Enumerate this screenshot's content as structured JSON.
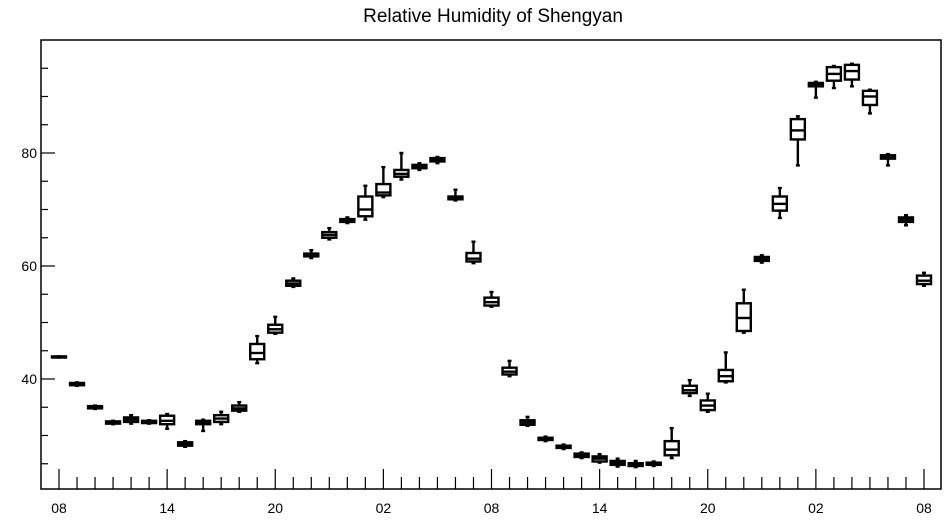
{
  "chart_data": {
    "type": "boxplot",
    "title": "Relative Humidity of Shengyan",
    "xlabel": "",
    "ylabel": "",
    "ylim": [
      22.5,
      98
    ],
    "y_ticks": [
      40,
      60,
      80
    ],
    "x_tick_labels": [
      "08",
      "14",
      "20",
      "02",
      "08",
      "14",
      "20",
      "02",
      "08"
    ],
    "grid": false,
    "box_color": "#000000",
    "boxes": [
      {
        "x": 0,
        "q1": 43.8,
        "median": 43.9,
        "q3": 44.0,
        "min": 43.8,
        "max": 44.0
      },
      {
        "x": 1,
        "q1": 38.9,
        "median": 39.1,
        "q3": 39.3,
        "min": 38.8,
        "max": 39.4
      },
      {
        "x": 2,
        "q1": 34.8,
        "median": 35.0,
        "q3": 35.2,
        "min": 34.7,
        "max": 35.3
      },
      {
        "x": 3,
        "q1": 32.1,
        "median": 32.3,
        "q3": 32.5,
        "min": 32.0,
        "max": 32.6
      },
      {
        "x": 4,
        "q1": 32.4,
        "median": 32.8,
        "q3": 33.2,
        "min": 32.1,
        "max": 33.6
      },
      {
        "x": 5,
        "q1": 32.2,
        "median": 32.4,
        "q3": 32.6,
        "min": 32.1,
        "max": 32.7
      },
      {
        "x": 6,
        "q1": 32.0,
        "median": 32.6,
        "q3": 33.5,
        "min": 31.2,
        "max": 33.8
      },
      {
        "x": 7,
        "q1": 28.2,
        "median": 28.5,
        "q3": 28.8,
        "min": 28.0,
        "max": 29.0
      },
      {
        "x": 8,
        "q1": 32.0,
        "median": 32.3,
        "q3": 32.6,
        "min": 30.8,
        "max": 32.8
      },
      {
        "x": 9,
        "q1": 32.4,
        "median": 33.0,
        "q3": 33.6,
        "min": 32.0,
        "max": 34.2
      },
      {
        "x": 10,
        "q1": 34.4,
        "median": 34.8,
        "q3": 35.3,
        "min": 34.2,
        "max": 35.9
      },
      {
        "x": 11,
        "q1": 43.5,
        "median": 44.6,
        "q3": 46.2,
        "min": 42.8,
        "max": 47.6
      },
      {
        "x": 12,
        "q1": 48.2,
        "median": 48.8,
        "q3": 49.6,
        "min": 48.0,
        "max": 51.0
      },
      {
        "x": 13,
        "q1": 56.5,
        "median": 56.9,
        "q3": 57.4,
        "min": 56.3,
        "max": 57.8
      },
      {
        "x": 14,
        "q1": 61.7,
        "median": 61.9,
        "q3": 62.2,
        "min": 61.4,
        "max": 62.8
      },
      {
        "x": 15,
        "q1": 65.0,
        "median": 65.5,
        "q3": 66.0,
        "min": 64.7,
        "max": 66.7
      },
      {
        "x": 16,
        "q1": 67.8,
        "median": 68.0,
        "q3": 68.3,
        "min": 67.6,
        "max": 68.6
      },
      {
        "x": 17,
        "q1": 68.8,
        "median": 70.0,
        "q3": 72.3,
        "min": 68.2,
        "max": 74.2
      },
      {
        "x": 18,
        "q1": 72.5,
        "median": 73.0,
        "q3": 74.5,
        "min": 72.2,
        "max": 77.5
      },
      {
        "x": 19,
        "q1": 75.8,
        "median": 76.3,
        "q3": 77.0,
        "min": 75.3,
        "max": 80.0
      },
      {
        "x": 20,
        "q1": 77.3,
        "median": 77.6,
        "q3": 77.9,
        "min": 77.0,
        "max": 78.2
      },
      {
        "x": 21,
        "q1": 78.5,
        "median": 78.8,
        "q3": 79.1,
        "min": 78.2,
        "max": 79.3
      },
      {
        "x": 22,
        "q1": 71.8,
        "median": 72.0,
        "q3": 72.3,
        "min": 71.6,
        "max": 73.5
      },
      {
        "x": 23,
        "q1": 60.8,
        "median": 61.3,
        "q3": 62.3,
        "min": 60.5,
        "max": 64.3
      },
      {
        "x": 24,
        "q1": 53.0,
        "median": 53.6,
        "q3": 54.4,
        "min": 52.8,
        "max": 55.4
      },
      {
        "x": 25,
        "q1": 40.8,
        "median": 41.3,
        "q3": 42.0,
        "min": 40.5,
        "max": 43.2
      },
      {
        "x": 26,
        "q1": 31.9,
        "median": 32.3,
        "q3": 32.7,
        "min": 31.7,
        "max": 33.3
      },
      {
        "x": 27,
        "q1": 29.2,
        "median": 29.4,
        "q3": 29.6,
        "min": 29.0,
        "max": 29.8
      },
      {
        "x": 28,
        "q1": 27.8,
        "median": 28.0,
        "q3": 28.2,
        "min": 27.6,
        "max": 28.4
      },
      {
        "x": 29,
        "q1": 26.2,
        "median": 26.5,
        "q3": 26.8,
        "min": 26.0,
        "max": 27.0
      },
      {
        "x": 30,
        "q1": 25.4,
        "median": 25.9,
        "q3": 26.3,
        "min": 25.2,
        "max": 26.7
      },
      {
        "x": 31,
        "q1": 24.8,
        "median": 25.1,
        "q3": 25.5,
        "min": 24.5,
        "max": 25.9
      },
      {
        "x": 32,
        "q1": 24.6,
        "median": 24.9,
        "q3": 25.1,
        "min": 24.4,
        "max": 25.5
      },
      {
        "x": 33,
        "q1": 24.8,
        "median": 25.0,
        "q3": 25.2,
        "min": 24.6,
        "max": 25.4
      },
      {
        "x": 34,
        "q1": 26.5,
        "median": 27.5,
        "q3": 29.0,
        "min": 26.0,
        "max": 31.3
      },
      {
        "x": 35,
        "q1": 37.5,
        "median": 38.0,
        "q3": 38.8,
        "min": 37.0,
        "max": 39.8
      },
      {
        "x": 36,
        "q1": 34.5,
        "median": 35.3,
        "q3": 36.2,
        "min": 34.2,
        "max": 37.4
      },
      {
        "x": 37,
        "q1": 39.6,
        "median": 40.5,
        "q3": 41.6,
        "min": 39.4,
        "max": 44.7
      },
      {
        "x": 38,
        "q1": 48.5,
        "median": 50.8,
        "q3": 53.4,
        "min": 48.2,
        "max": 55.8
      },
      {
        "x": 39,
        "q1": 60.9,
        "median": 61.2,
        "q3": 61.6,
        "min": 60.6,
        "max": 61.9
      },
      {
        "x": 40,
        "q1": 69.8,
        "median": 71.0,
        "q3": 72.3,
        "min": 68.5,
        "max": 73.8
      },
      {
        "x": 41,
        "q1": 82.4,
        "median": 84.0,
        "q3": 86.0,
        "min": 77.8,
        "max": 86.5
      },
      {
        "x": 42,
        "q1": 91.8,
        "median": 92.1,
        "q3": 92.4,
        "min": 89.8,
        "max": 92.6
      },
      {
        "x": 43,
        "q1": 92.8,
        "median": 94.0,
        "q3": 95.2,
        "min": 91.5,
        "max": 95.4
      },
      {
        "x": 44,
        "q1": 93.0,
        "median": 94.5,
        "q3": 95.6,
        "min": 91.8,
        "max": 95.8
      },
      {
        "x": 45,
        "q1": 88.5,
        "median": 90.0,
        "q3": 91.0,
        "min": 87.0,
        "max": 91.2
      },
      {
        "x": 46,
        "q1": 79.0,
        "median": 79.3,
        "q3": 79.6,
        "min": 77.8,
        "max": 79.8
      },
      {
        "x": 47,
        "q1": 67.8,
        "median": 68.2,
        "q3": 68.6,
        "min": 67.2,
        "max": 69.0
      },
      {
        "x": 48,
        "q1": 56.8,
        "median": 57.4,
        "q3": 58.3,
        "min": 56.5,
        "max": 58.8
      }
    ]
  }
}
